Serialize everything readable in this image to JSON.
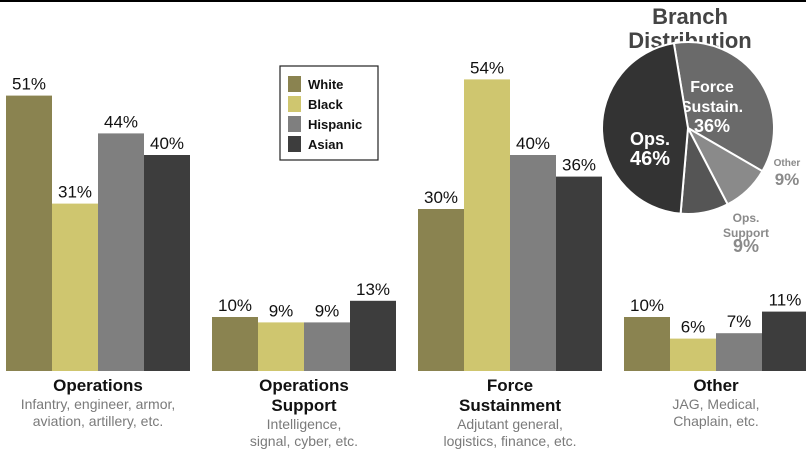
{
  "chart_data": [
    {
      "type": "bar",
      "legend": [
        {
          "name": "White",
          "color": "#8a8350"
        },
        {
          "name": "Black",
          "color": "#cfc66f"
        },
        {
          "name": "Hispanic",
          "color": "#7f7f7f"
        },
        {
          "name": "Asian",
          "color": "#3d3d3d"
        }
      ],
      "legend_position": "top-center",
      "ylim": [
        0,
        60
      ],
      "grid": false,
      "value_suffix": "%",
      "categories": [
        "Operations",
        "Operations Support",
        "Force Sustainment",
        "Other"
      ],
      "groups": [
        {
          "title": [
            "Operations"
          ],
          "subtitle": [
            "Infantry, engineer, armor,",
            "aviation, artillery, etc."
          ],
          "values": [
            51,
            31,
            44,
            40
          ]
        },
        {
          "title": [
            "Operations",
            "Support"
          ],
          "subtitle": [
            "Intelligence,",
            "signal, cyber, etc."
          ],
          "values": [
            10,
            9,
            9,
            13
          ]
        },
        {
          "title": [
            "Force",
            "Sustainment"
          ],
          "subtitle": [
            "Adjutant general,",
            "logistics, finance, etc."
          ],
          "values": [
            30,
            54,
            40,
            36
          ]
        },
        {
          "title": [
            "Other"
          ],
          "subtitle": [
            "JAG, Medical,",
            "Chaplain, etc."
          ],
          "values": [
            10,
            6,
            7,
            11
          ]
        }
      ],
      "series": [
        {
          "name": "White",
          "values": [
            51,
            10,
            30,
            10
          ]
        },
        {
          "name": "Black",
          "values": [
            31,
            9,
            54,
            6
          ]
        },
        {
          "name": "Hispanic",
          "values": [
            44,
            9,
            40,
            7
          ]
        },
        {
          "name": "Asian",
          "values": [
            40,
            13,
            36,
            11
          ]
        }
      ]
    },
    {
      "type": "pie",
      "title": [
        "Branch",
        "Distribution"
      ],
      "slices": [
        {
          "label": [
            "Force",
            "Sustain."
          ],
          "value": 36,
          "text": "36%",
          "color": "#6a6a6a",
          "label_position": "inside"
        },
        {
          "label": [
            "Other"
          ],
          "value": 9,
          "text": "9%",
          "color": "#8a8a8a",
          "label_position": "outside"
        },
        {
          "label": [
            "Ops.",
            "Support"
          ],
          "value": 9,
          "text": "9%",
          "color": "#555555",
          "label_position": "outside"
        },
        {
          "label": [
            "Ops."
          ],
          "value": 46,
          "text": "46%",
          "color": "#333333",
          "label_position": "inside"
        }
      ]
    }
  ]
}
